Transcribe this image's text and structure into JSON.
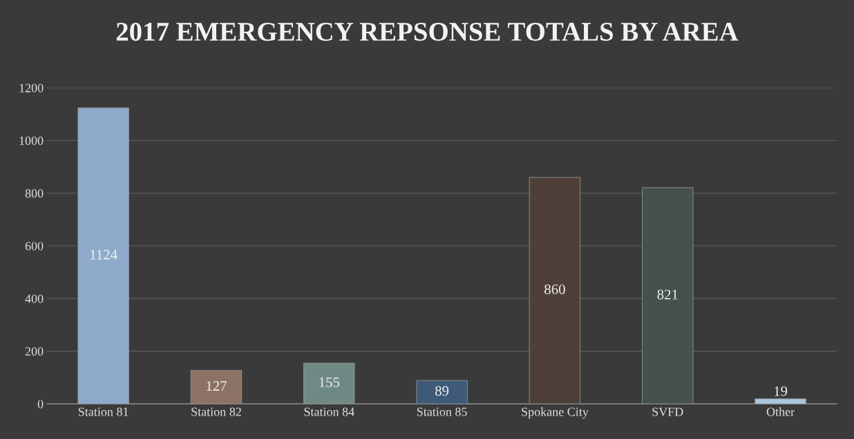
{
  "chart_data": {
    "type": "bar",
    "title": "2017 EMERGENCY REPSONSE TOTALS BY AREA",
    "categories": [
      "Station 81",
      "Station 82",
      "Station 84",
      "Station 85",
      "Spokane City",
      "SVFD",
      "Other"
    ],
    "values": [
      1124,
      127,
      155,
      89,
      860,
      821,
      19
    ],
    "colors": [
      "#8eaacb",
      "#8c7264",
      "#6f8a85",
      "#3f5a78",
      "#4e3f38",
      "#45504f",
      "#a9c6e0"
    ],
    "ylim": [
      0,
      1200
    ],
    "yticks": [
      0,
      200,
      400,
      600,
      800,
      1000,
      1200
    ],
    "grid": "y",
    "data_labels": true
  }
}
